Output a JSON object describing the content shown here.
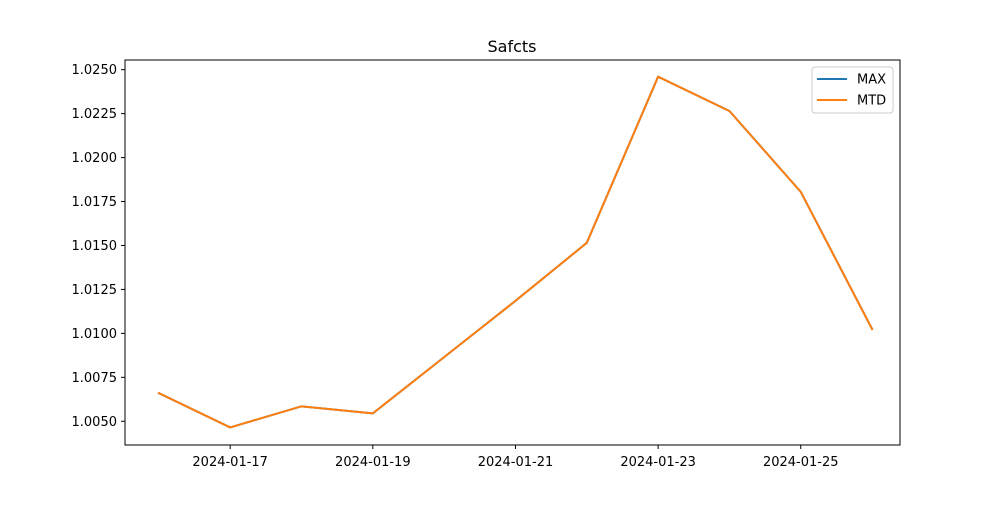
{
  "chart_data": {
    "type": "line",
    "title": "Safcts",
    "xlabel": "",
    "ylabel": "",
    "x": [
      "2024-01-16",
      "2024-01-17",
      "2024-01-18",
      "2024-01-19",
      "2024-01-20",
      "2024-01-21",
      "2024-01-22",
      "2024-01-23",
      "2024-01-24",
      "2024-01-25",
      "2024-01-26"
    ],
    "series": [
      {
        "name": "MAX",
        "color": "#1f77b4",
        "values": [
          1.0066,
          1.00465,
          1.00585,
          1.00545,
          1.00865,
          1.01185,
          1.01515,
          1.0246,
          1.02265,
          1.01805,
          1.01025
        ]
      },
      {
        "name": "MTD",
        "color": "#ff7f0e",
        "values": [
          1.0066,
          1.00465,
          1.00585,
          1.00545,
          1.00865,
          1.01185,
          1.01515,
          1.0246,
          1.02265,
          1.01805,
          1.01025
        ]
      }
    ],
    "xlim": [
      "2024-01-15T12:36",
      "2024-01-26T09:24"
    ],
    "ylim": [
      1.00365,
      1.02555
    ],
    "x_ticks": [
      "2024-01-17",
      "2024-01-19",
      "2024-01-21",
      "2024-01-23",
      "2024-01-25"
    ],
    "y_ticks": [
      "1.0050",
      "1.0075",
      "1.0100",
      "1.0125",
      "1.0150",
      "1.0175",
      "1.0200",
      "1.0225",
      "1.0250"
    ],
    "grid": false,
    "legend": "top-right"
  }
}
